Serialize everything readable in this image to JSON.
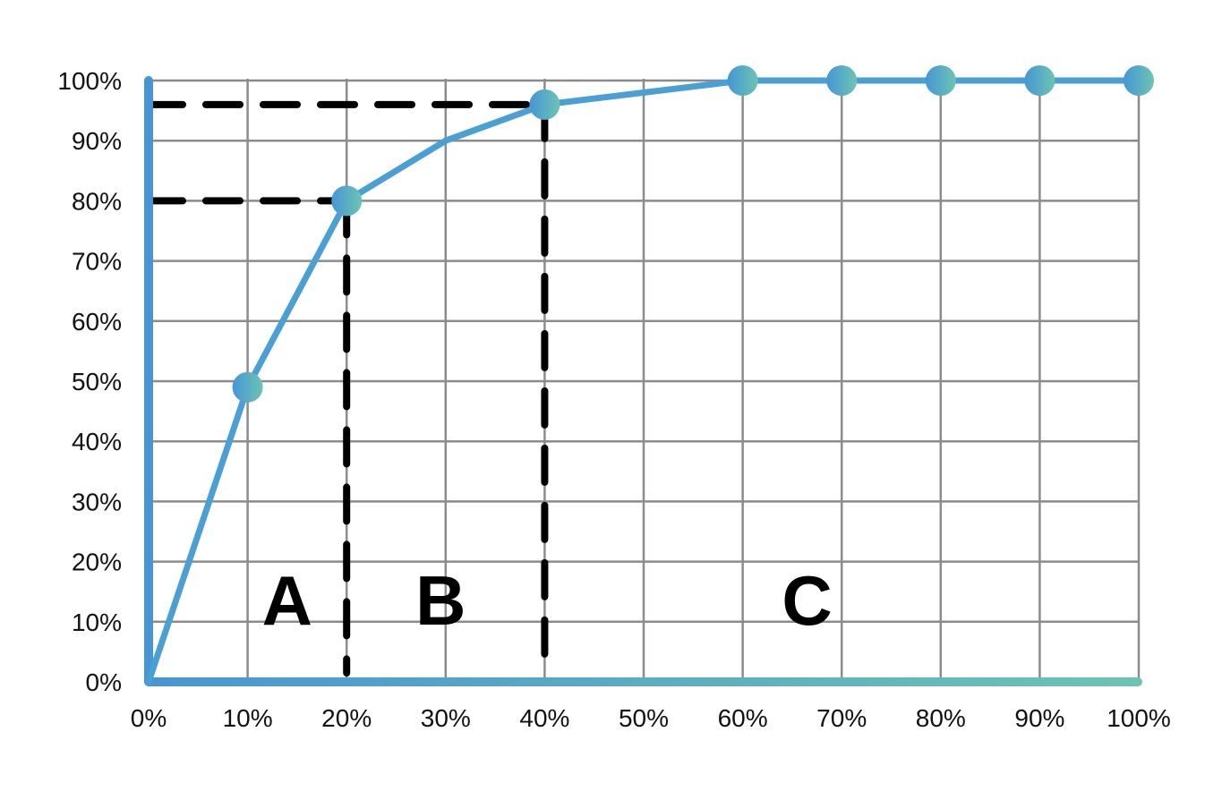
{
  "chart_data": {
    "type": "line",
    "title": "",
    "xlabel": "",
    "ylabel": "",
    "x_ticks": [
      "0%",
      "10%",
      "20%",
      "30%",
      "40%",
      "50%",
      "60%",
      "70%",
      "80%",
      "90%",
      "100%"
    ],
    "y_ticks": [
      "0%",
      "10%",
      "20%",
      "30%",
      "40%",
      "50%",
      "60%",
      "70%",
      "80%",
      "90%",
      "100%"
    ],
    "xlim": [
      0,
      100
    ],
    "ylim": [
      0,
      100
    ],
    "grid": true,
    "series": [
      {
        "x": [
          0,
          10,
          20,
          30,
          40,
          50,
          60,
          70,
          80,
          90,
          100
        ],
        "y": [
          0,
          49,
          80,
          90,
          96,
          98,
          100,
          100,
          100,
          100,
          100
        ],
        "markers": [
          10,
          20,
          40,
          60,
          70,
          80,
          90,
          100
        ]
      }
    ],
    "reference_lines": [
      {
        "x": 20,
        "y": 80
      },
      {
        "x": 40,
        "y": 96
      }
    ],
    "regions": [
      {
        "label": "A",
        "x_center": 14
      },
      {
        "label": "B",
        "x_center": 29.5
      },
      {
        "label": "C",
        "x_center": 66.5
      }
    ],
    "colors": {
      "line": "#4a9fd4",
      "gradient_start": "#4696d6",
      "gradient_end": "#6cc4b2",
      "grid": "#8c8c8c",
      "reference": "#000000"
    }
  }
}
